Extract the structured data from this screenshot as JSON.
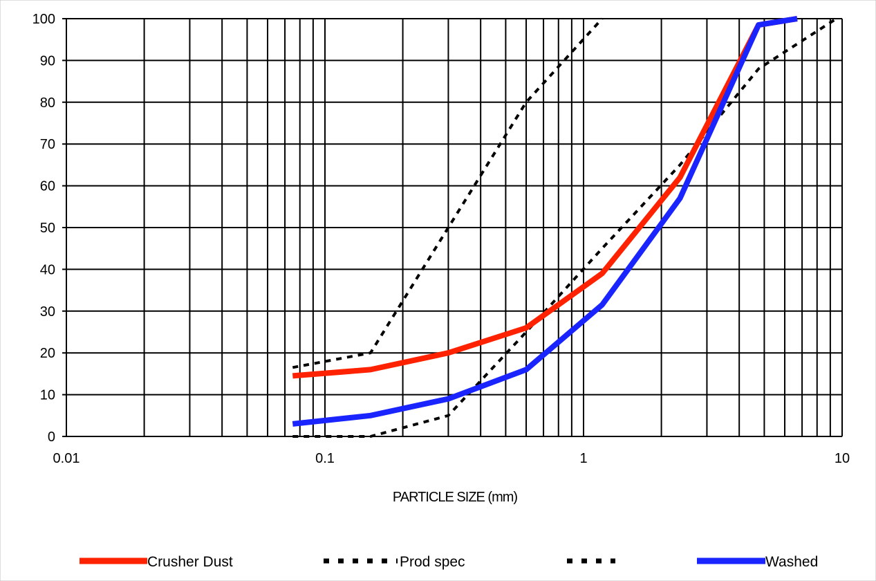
{
  "chart_data": {
    "type": "line",
    "title": "",
    "xlabel": "PARTICLE SIZE (mm)",
    "ylabel": "",
    "x_scale": "log",
    "xlim": [
      0.01,
      10
    ],
    "ylim": [
      0,
      100
    ],
    "x_tick_labels": [
      "0.01",
      "0.1",
      "1",
      "10"
    ],
    "x_tick_values": [
      0.01,
      0.1,
      1,
      10
    ],
    "y_tick_values": [
      0,
      10,
      20,
      30,
      40,
      50,
      60,
      70,
      80,
      90,
      100
    ],
    "y_tick_labels": [
      "0",
      "10",
      "20",
      "30",
      "40",
      "50",
      "60",
      "70",
      "80",
      "90",
      "100"
    ],
    "grid": true,
    "legend_position": "bottom",
    "series": [
      {
        "name": "Crusher Dust",
        "color": "#ff2200",
        "style": "solid",
        "x": [
          0.075,
          0.15,
          0.3,
          0.6,
          1.18,
          2.36,
          4.75,
          6.7
        ],
        "y": [
          14.5,
          16,
          20,
          26,
          39,
          62,
          98.5,
          100
        ]
      },
      {
        "name": "Prod spec",
        "color": "#000000",
        "style": "dashed",
        "x": [
          0.075,
          0.15,
          0.3,
          0.6,
          1.18
        ],
        "y": [
          16.5,
          20,
          50,
          80,
          100
        ]
      },
      {
        "name": "",
        "color": "#000000",
        "style": "dashed",
        "x": [
          0.075,
          0.15,
          0.3,
          0.6,
          1.18,
          2.36,
          4.75,
          9.5
        ],
        "y": [
          0,
          0,
          5,
          25,
          45,
          65,
          88,
          100
        ]
      },
      {
        "name": "Washed",
        "color": "#1a24ff",
        "style": "solid",
        "x": [
          0.075,
          0.15,
          0.3,
          0.6,
          1.18,
          2.36,
          4.75,
          6.7
        ],
        "y": [
          3,
          5,
          9,
          16,
          31.5,
          57,
          98.5,
          100
        ]
      }
    ]
  }
}
